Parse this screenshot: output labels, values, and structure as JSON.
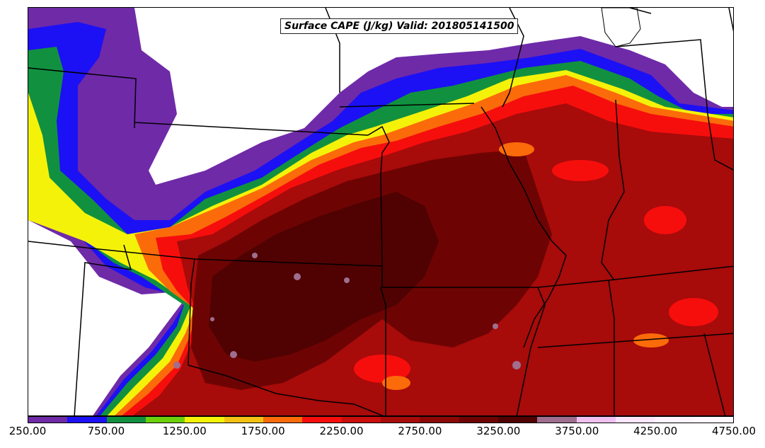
{
  "map": {
    "title": "Surface CAPE (J/kg) Valid: 201805141500",
    "field": "Surface CAPE",
    "units": "J/kg",
    "valid_time": "201805141500"
  },
  "colorbar": {
    "min": 250,
    "max": 4750,
    "colors": [
      "#6f2aa8",
      "#1c10f5",
      "#11913f",
      "#6cd10a",
      "#f5f20a",
      "#f3c214",
      "#fb6b0a",
      "#f60e0d",
      "#c90e0c",
      "#a70b0a",
      "#8b0807",
      "#6d0403",
      "#4f0201",
      "#a06e8e",
      "#f0c1f0",
      "#fbe6fb",
      "#fcf3fc",
      "#fff8ff"
    ],
    "tick_labels": [
      "250.00",
      "750.00",
      "1250.00",
      "1750.00",
      "2250.00",
      "2750.00",
      "3250.00",
      "3750.00",
      "4250.00",
      "4750.00"
    ]
  }
}
